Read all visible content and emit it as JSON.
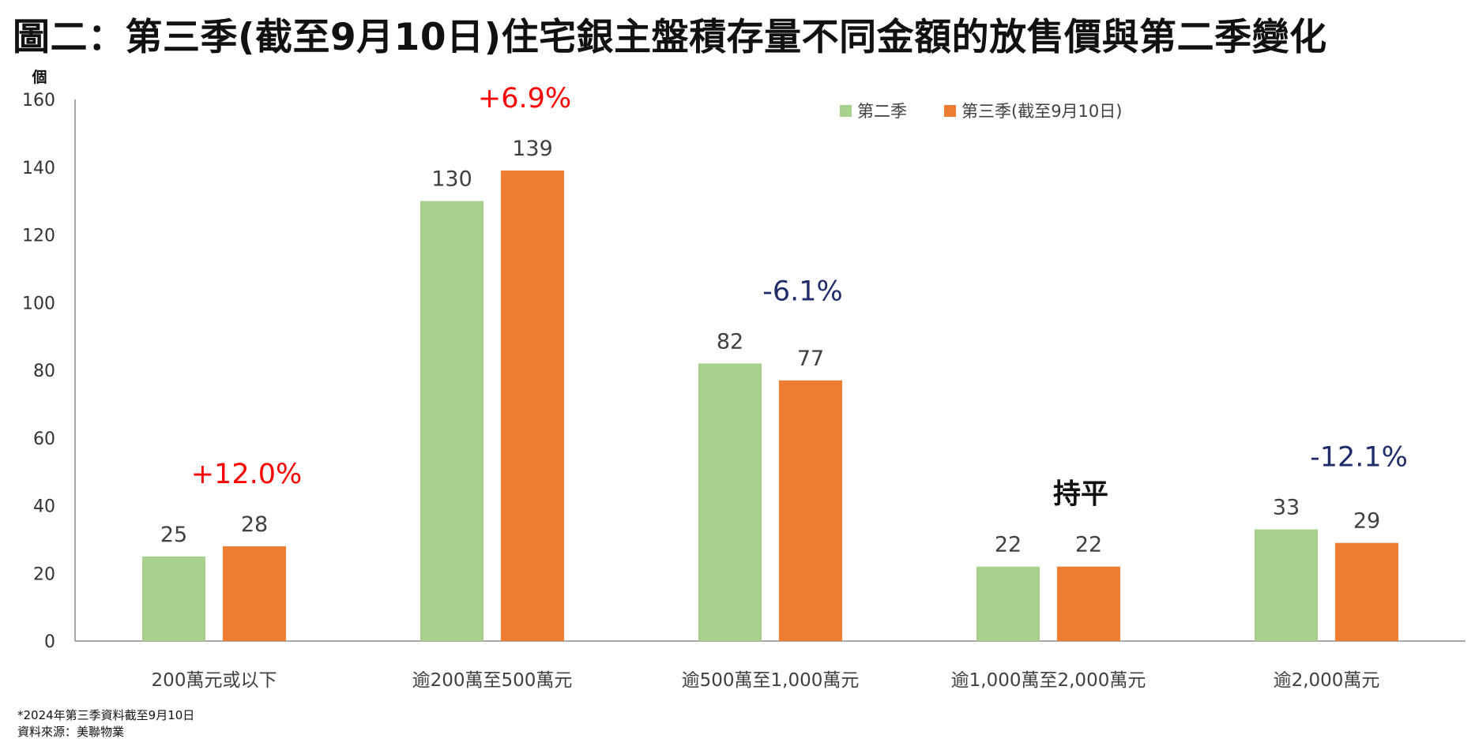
{
  "title": "圖二：第三季(截至9月10日)住宅銀主盤積存量不同金額的放售價與第二季變化",
  "chart_data": {
    "type": "bar",
    "ylabel": "個",
    "ylim": [
      0,
      160
    ],
    "yticks": [
      0,
      20,
      40,
      60,
      80,
      100,
      120,
      140,
      160
    ],
    "grid": false,
    "legend_position": "top-right",
    "categories": [
      "200萬元或以下",
      "逾200萬至500萬元",
      "逾500萬至1,000萬元",
      "逾1,000萬至2,000萬元",
      "逾2,000萬元"
    ],
    "series": [
      {
        "name": "第二季",
        "color": "#a9d18e",
        "values": [
          25,
          130,
          82,
          22,
          33
        ]
      },
      {
        "name": "第三季(截至9月10日)",
        "color": "#ed7d31",
        "values": [
          28,
          139,
          77,
          22,
          29
        ]
      }
    ],
    "changes": [
      {
        "label": "+12.0%",
        "color": "#ff0000"
      },
      {
        "label": "+6.9%",
        "color": "#ff0000"
      },
      {
        "label": "-6.1%",
        "color": "#1f2d6b"
      },
      {
        "label": "持平",
        "color": "#111111"
      },
      {
        "label": "-12.1%",
        "color": "#1f2d6b"
      }
    ]
  },
  "footnotes": {
    "note": "*2024年第三季資料截至9月10日",
    "source": "資料來源：美聯物業"
  }
}
